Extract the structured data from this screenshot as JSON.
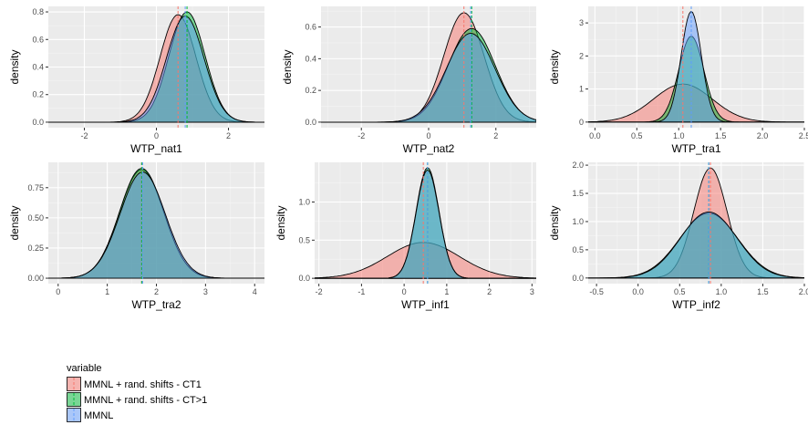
{
  "legend": {
    "title": "variable",
    "position": "bottom-left",
    "entries": [
      {
        "name": "MMNL + rand. shifts - CT1",
        "color": "#F8766D"
      },
      {
        "name": "MMNL + rand. shifts - CT>1",
        "color": "#00BA38"
      },
      {
        "name": "MMNL",
        "color": "#619CFF"
      }
    ]
  },
  "chart_data": [
    {
      "type": "area",
      "xlabel": "WTP_nat1",
      "ylabel": "density",
      "xlim": [
        -3,
        3
      ],
      "ylim": [
        -0.04,
        0.84
      ],
      "xticks": [
        -2,
        0,
        2
      ],
      "yticks": [
        0.0,
        0.2,
        0.4,
        0.6,
        0.8
      ],
      "tick_decimals": 1,
      "grid": true,
      "series": [
        {
          "name": "MMNL + rand. shifts - CT1",
          "mean": 0.6,
          "sd": 0.5,
          "peak": 0.78
        },
        {
          "name": "MMNL + rand. shifts - CT>1",
          "mean": 0.85,
          "sd": 0.5,
          "peak": 0.8
        },
        {
          "name": "MMNL",
          "mean": 0.8,
          "sd": 0.52,
          "peak": 0.77
        }
      ]
    },
    {
      "type": "area",
      "xlabel": "WTP_nat2",
      "ylabel": "density",
      "xlim": [
        -3.2,
        3.2
      ],
      "ylim": [
        -0.035,
        0.73
      ],
      "xticks": [
        -2,
        0,
        2
      ],
      "yticks": [
        0.0,
        0.2,
        0.4,
        0.6
      ],
      "tick_decimals": 1,
      "grid": true,
      "series": [
        {
          "name": "MMNL + rand. shifts - CT1",
          "mean": 1.05,
          "sd": 0.6,
          "peak": 0.69
        },
        {
          "name": "MMNL + rand. shifts - CT>1",
          "mean": 1.28,
          "sd": 0.7,
          "peak": 0.59
        },
        {
          "name": "MMNL",
          "mean": 1.25,
          "sd": 0.72,
          "peak": 0.56
        }
      ]
    },
    {
      "type": "area",
      "xlabel": "WTP_tra1",
      "ylabel": "density",
      "xlim": [
        -0.08,
        2.5
      ],
      "ylim": [
        -0.17,
        3.5
      ],
      "xticks": [
        0.0,
        0.5,
        1.0,
        1.5,
        2.0,
        2.5
      ],
      "yticks": [
        0,
        1,
        2,
        3
      ],
      "tick_decimals": 0,
      "x_tick_decimals": 1,
      "grid": true,
      "series": [
        {
          "name": "MMNL + rand. shifts - CT1",
          "mean": 1.05,
          "sd": 0.35,
          "peak": 1.15
        },
        {
          "name": "MMNL + rand. shifts - CT>1",
          "mean": 1.15,
          "sd": 0.15,
          "peak": 2.6
        },
        {
          "name": "MMNL",
          "mean": 1.15,
          "sd": 0.12,
          "peak": 3.35
        }
      ]
    },
    {
      "type": "area",
      "xlabel": "WTP_tra2",
      "ylabel": "density",
      "xlim": [
        -0.2,
        4.2
      ],
      "ylim": [
        -0.045,
        0.96
      ],
      "xticks": [
        0,
        1,
        2,
        3,
        4
      ],
      "yticks": [
        0.0,
        0.25,
        0.5,
        0.75
      ],
      "tick_decimals": 2,
      "x_tick_decimals": 0,
      "grid": true,
      "series": [
        {
          "name": "MMNL + rand. shifts - CT1",
          "mean": 1.7,
          "sd": 0.45,
          "peak": 0.9
        },
        {
          "name": "MMNL + rand. shifts - CT>1",
          "mean": 1.7,
          "sd": 0.45,
          "peak": 0.91
        },
        {
          "name": "MMNL",
          "mean": 1.72,
          "sd": 0.46,
          "peak": 0.88
        }
      ]
    },
    {
      "type": "area",
      "xlabel": "WTP_inf1",
      "ylabel": "density",
      "xlim": [
        -2.1,
        3.1
      ],
      "ylim": [
        -0.07,
        1.52
      ],
      "xticks": [
        -2,
        -1,
        0,
        1,
        2,
        3
      ],
      "yticks": [
        0.0,
        0.5,
        1.0
      ],
      "tick_decimals": 1,
      "x_tick_decimals": 0,
      "grid": true,
      "series": [
        {
          "name": "MMNL + rand. shifts - CT1",
          "mean": 0.45,
          "sd": 0.85,
          "peak": 0.47
        },
        {
          "name": "MMNL + rand. shifts - CT>1",
          "mean": 0.55,
          "sd": 0.27,
          "peak": 1.45
        },
        {
          "name": "MMNL",
          "mean": 0.55,
          "sd": 0.27,
          "peak": 1.42
        }
      ]
    },
    {
      "type": "area",
      "xlabel": "WTP_inf2",
      "ylabel": "density",
      "xlim": [
        -0.6,
        2.0
      ],
      "ylim": [
        -0.1,
        2.05
      ],
      "xticks": [
        -0.5,
        0.0,
        0.5,
        1.0,
        1.5,
        2.0
      ],
      "yticks": [
        0.0,
        0.5,
        1.0,
        1.5,
        2.0
      ],
      "tick_decimals": 1,
      "grid": true,
      "series": [
        {
          "name": "MMNL + rand. shifts - CT1",
          "mean": 0.87,
          "sd": 0.2,
          "peak": 1.95
        },
        {
          "name": "MMNL + rand. shifts - CT>1",
          "mean": 0.85,
          "sd": 0.35,
          "peak": 1.15
        },
        {
          "name": "MMNL",
          "mean": 0.85,
          "sd": 0.34,
          "peak": 1.17
        }
      ]
    }
  ]
}
